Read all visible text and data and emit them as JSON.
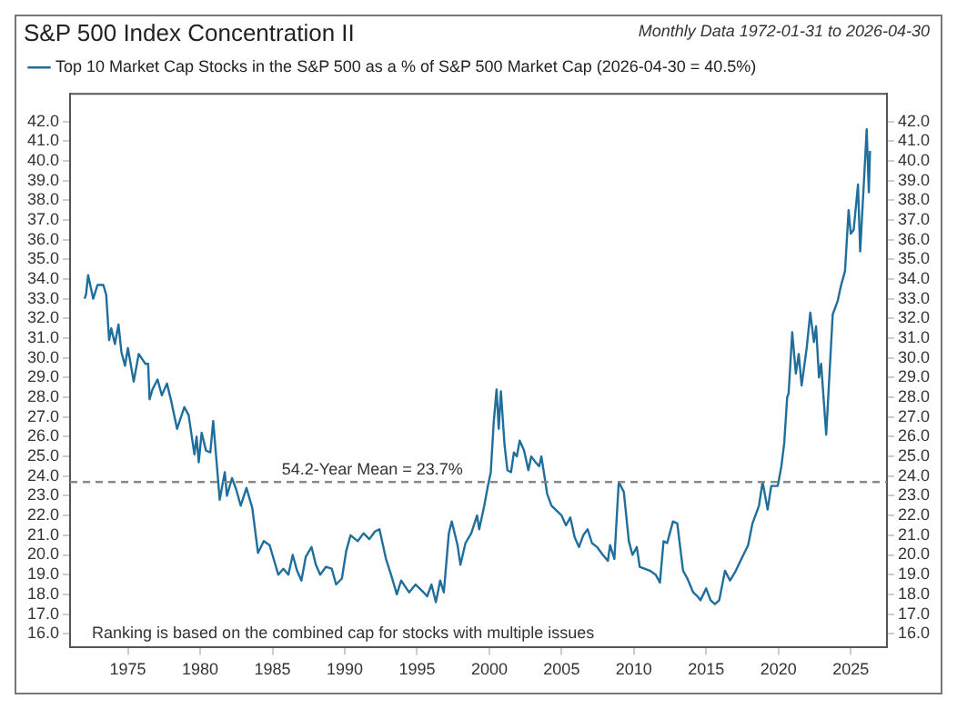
{
  "chart_data": {
    "type": "line",
    "title": "S&P 500 Index Concentration II",
    "subtitle": "Monthly Data 1972-01-31 to 2026-04-30",
    "annotations": [
      "Ranking is based on the combined cap for stocks with multiple issues"
    ],
    "legend": "top left",
    "grid": false,
    "marker": "none",
    "line_style": "solid",
    "xlim": [
      1971,
      2027.5
    ],
    "xticks": [
      1975,
      1980,
      1985,
      1990,
      1995,
      2000,
      2005,
      2010,
      2015,
      2020,
      2025
    ],
    "ylim": [
      15.3,
      43.4
    ],
    "yticks": [
      {
        "value": 16,
        "label": "16.0"
      },
      {
        "value": 17,
        "label": "17.0"
      },
      {
        "value": 18,
        "label": "18.0"
      },
      {
        "value": 19,
        "label": "19.0"
      },
      {
        "value": 20,
        "label": "20.0"
      },
      {
        "value": 21,
        "label": "21.0"
      },
      {
        "value": 22,
        "label": "22.0"
      },
      {
        "value": 23,
        "label": "23.0"
      },
      {
        "value": 24,
        "label": "24.0"
      },
      {
        "value": 25,
        "label": "25.0"
      },
      {
        "value": 26,
        "label": "26.0"
      },
      {
        "value": 27,
        "label": "27.0"
      },
      {
        "value": 28,
        "label": "28.0"
      },
      {
        "value": 29,
        "label": "29.0"
      },
      {
        "value": 30,
        "label": "30.0"
      },
      {
        "value": 31,
        "label": "31.0"
      },
      {
        "value": 32,
        "label": "32.0"
      },
      {
        "value": 33,
        "label": "33.0"
      },
      {
        "value": 34,
        "label": "34.0"
      },
      {
        "value": 35,
        "label": "35.0"
      },
      {
        "value": 36,
        "label": "36.0"
      },
      {
        "value": 37,
        "label": "37.0"
      },
      {
        "value": 38,
        "label": "38.0"
      },
      {
        "value": 39,
        "label": "39.0"
      },
      {
        "value": 40,
        "label": "40.0"
      },
      {
        "value": 41,
        "label": "41.0"
      },
      {
        "value": 42,
        "label": "42.0"
      }
    ],
    "y2lim": [
      15.3,
      43.4
    ],
    "y2ticks": [
      {
        "value": 16,
        "label": "16.0"
      },
      {
        "value": 17,
        "label": "17.0"
      },
      {
        "value": 18,
        "label": "18.0"
      },
      {
        "value": 19,
        "label": "19.0"
      },
      {
        "value": 20,
        "label": "20.0"
      },
      {
        "value": 21,
        "label": "21.0"
      },
      {
        "value": 22,
        "label": "22.0"
      },
      {
        "value": 23,
        "label": "23.0"
      },
      {
        "value": 24,
        "label": "24.0"
      },
      {
        "value": 25,
        "label": "25.0"
      },
      {
        "value": 26,
        "label": "26.0"
      },
      {
        "value": 27,
        "label": "27.0"
      },
      {
        "value": 28,
        "label": "28.0"
      },
      {
        "value": 29,
        "label": "29.0"
      },
      {
        "value": 30,
        "label": "30.0"
      },
      {
        "value": 31,
        "label": "31.0"
      },
      {
        "value": 32,
        "label": "32.0"
      },
      {
        "value": 33,
        "label": "33.0"
      },
      {
        "value": 34,
        "label": "34.0"
      },
      {
        "value": 35,
        "label": "35.0"
      },
      {
        "value": 36,
        "label": "36.0"
      },
      {
        "value": 37,
        "label": "37.0"
      },
      {
        "value": 38,
        "label": "38.0"
      },
      {
        "value": 39,
        "label": "39.0"
      },
      {
        "value": 40,
        "label": "40.0"
      },
      {
        "value": 41,
        "label": "41.0"
      },
      {
        "value": 42,
        "label": "42.0"
      }
    ],
    "ref_lines": [
      {
        "axis": "y",
        "value": 23.7,
        "label": "54.2-Year Mean = 23.7%",
        "color": "#888888",
        "line_style": "dashed"
      }
    ],
    "series": [
      {
        "name": "Top 10 Market Cap Stocks in the S&P 500 as a % of S&P 500 Market Cap (2026-04-30 = 40.5%)",
        "color": "#1f6e9c",
        "x": [
          1972.0,
          1972.1,
          1972.25,
          1972.6,
          1972.9,
          1973.3,
          1973.5,
          1973.7,
          1973.85,
          1974.1,
          1974.35,
          1974.55,
          1974.8,
          1975.0,
          1975.4,
          1975.75,
          1976.2,
          1976.4,
          1976.5,
          1976.7,
          1977.05,
          1977.35,
          1977.7,
          1978.0,
          1978.4,
          1978.9,
          1979.2,
          1979.6,
          1979.75,
          1979.9,
          1980.1,
          1980.4,
          1980.7,
          1980.9,
          1981.35,
          1981.7,
          1981.85,
          1982.2,
          1982.5,
          1982.8,
          1983.2,
          1983.6,
          1984.0,
          1984.4,
          1984.8,
          1985.0,
          1985.4,
          1985.75,
          1986.1,
          1986.4,
          1986.7,
          1987.0,
          1987.3,
          1987.7,
          1988.0,
          1988.3,
          1988.7,
          1989.1,
          1989.4,
          1989.8,
          1990.1,
          1990.4,
          1990.9,
          1991.3,
          1991.7,
          1992.1,
          1992.4,
          1992.85,
          1993.2,
          1993.6,
          1993.9,
          1994.45,
          1994.9,
          1995.45,
          1995.7,
          1996.0,
          1996.3,
          1996.6,
          1996.85,
          1997.2,
          1997.4,
          1997.8,
          1998.0,
          1998.35,
          1998.75,
          1999.15,
          1999.3,
          1999.65,
          1999.9,
          2000.1,
          2000.3,
          2000.5,
          2000.65,
          2000.8,
          2001.05,
          2001.25,
          2001.5,
          2001.7,
          2001.9,
          2002.1,
          2002.4,
          2002.7,
          2002.9,
          2003.2,
          2003.45,
          2003.6,
          2004.0,
          2004.3,
          2005.0,
          2005.3,
          2005.6,
          2005.9,
          2006.2,
          2006.5,
          2006.8,
          2007.1,
          2007.45,
          2007.85,
          2008.2,
          2008.35,
          2008.65,
          2008.95,
          2009.3,
          2009.65,
          2009.9,
          2010.2,
          2010.4,
          2011.1,
          2011.5,
          2011.8,
          2012.05,
          2012.3,
          2012.7,
          2013.0,
          2013.4,
          2013.7,
          2014.1,
          2014.4,
          2014.6,
          2015.0,
          2015.3,
          2015.6,
          2015.9,
          2016.3,
          2016.65,
          2017.05,
          2017.5,
          2017.9,
          2018.2,
          2018.65,
          2018.9,
          2019.25,
          2019.5,
          2019.95,
          2020.2,
          2020.4,
          2020.6,
          2020.7,
          2020.95,
          2021.2,
          2021.4,
          2021.6,
          2021.95,
          2022.2,
          2022.45,
          2022.6,
          2022.8,
          2022.95,
          2023.3,
          2023.75,
          2024.1,
          2024.3,
          2024.6,
          2024.85,
          2025.0,
          2025.2,
          2025.5,
          2025.65,
          2025.95,
          2026.1,
          2026.25,
          2026.33
        ],
        "values": [
          33.0,
          33.2,
          34.2,
          33.0,
          33.7,
          33.7,
          33.2,
          30.9,
          31.5,
          30.7,
          31.7,
          30.3,
          29.6,
          30.5,
          28.8,
          30.2,
          29.7,
          29.7,
          27.9,
          28.4,
          28.9,
          28.1,
          28.7,
          27.8,
          26.4,
          27.5,
          27.1,
          25.1,
          26.0,
          24.7,
          26.2,
          25.3,
          25.2,
          26.8,
          22.8,
          24.2,
          23.0,
          23.9,
          23.3,
          22.5,
          23.4,
          22.4,
          20.1,
          20.7,
          20.5,
          20.0,
          19.0,
          19.3,
          19.0,
          20.0,
          19.2,
          18.7,
          19.9,
          20.4,
          19.5,
          19.0,
          19.4,
          19.3,
          18.5,
          18.8,
          20.2,
          21.0,
          20.7,
          21.1,
          20.8,
          21.2,
          21.3,
          19.8,
          19.0,
          18.0,
          18.7,
          18.1,
          18.5,
          18.1,
          17.9,
          18.5,
          17.6,
          18.7,
          18.1,
          21.1,
          21.7,
          20.5,
          19.5,
          20.6,
          21.1,
          22.0,
          21.3,
          22.5,
          23.5,
          24.2,
          26.7,
          28.4,
          26.4,
          28.3,
          25.6,
          24.3,
          24.2,
          25.2,
          25.0,
          25.8,
          25.3,
          24.3,
          25.0,
          24.7,
          24.5,
          25.0,
          23.1,
          22.5,
          22.0,
          21.5,
          21.9,
          20.9,
          20.4,
          21.0,
          21.3,
          20.6,
          20.4,
          20.0,
          19.7,
          20.5,
          19.8,
          23.7,
          23.2,
          20.7,
          20.0,
          20.4,
          19.4,
          19.2,
          19.0,
          18.6,
          20.7,
          20.6,
          21.7,
          21.6,
          19.2,
          18.8,
          18.1,
          17.9,
          17.7,
          18.3,
          17.7,
          17.5,
          17.7,
          19.2,
          18.7,
          19.2,
          19.9,
          20.5,
          21.6,
          22.5,
          23.7,
          22.3,
          23.5,
          23.5,
          24.5,
          25.7,
          28.0,
          28.2,
          31.3,
          29.2,
          30.2,
          28.6,
          30.5,
          32.3,
          30.8,
          31.6,
          29.0,
          29.7,
          26.1,
          32.2,
          32.9,
          33.6,
          34.4,
          37.5,
          36.3,
          36.5,
          38.8,
          35.4,
          39.5,
          41.6,
          38.4,
          40.5
        ]
      }
    ]
  }
}
